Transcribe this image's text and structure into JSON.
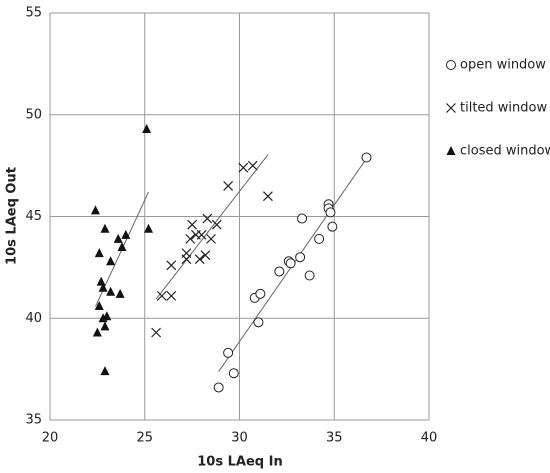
{
  "chart_data": {
    "type": "scatter",
    "x_label": "10s LAeq In",
    "y_label": "10s LAeq Out",
    "xlim": [
      20,
      40
    ],
    "xticks": [
      20,
      25,
      30,
      35,
      40
    ],
    "ylim": [
      35,
      55
    ],
    "yticks": [
      35,
      40,
      45,
      50,
      55
    ],
    "grid": true,
    "trendlines": true,
    "legend": "right",
    "series": [
      {
        "name": "open window",
        "marker": "circle",
        "color": "#222222",
        "x": [
          28.9,
          29.7,
          29.4,
          31.0,
          30.8,
          31.1,
          32.1,
          32.6,
          32.7,
          33.2,
          33.7,
          34.2,
          33.3,
          34.9,
          34.7,
          34.7,
          34.8,
          36.7
        ],
        "y": [
          36.6,
          37.3,
          38.3,
          39.8,
          41.0,
          41.2,
          42.3,
          42.8,
          42.7,
          43.0,
          42.1,
          43.9,
          44.9,
          44.5,
          45.6,
          45.4,
          45.2,
          47.9
        ]
      },
      {
        "name": "tilted window",
        "marker": "cross",
        "color": "#222222",
        "x": [
          25.6,
          25.9,
          26.4,
          26.4,
          27.2,
          27.2,
          27.4,
          27.5,
          27.7,
          27.9,
          28.0,
          28.2,
          28.3,
          28.5,
          28.8,
          29.4,
          30.2,
          30.7,
          31.5
        ],
        "y": [
          39.3,
          41.1,
          41.1,
          42.6,
          42.9,
          43.2,
          43.9,
          44.6,
          44.1,
          42.9,
          44.1,
          43.1,
          44.9,
          43.9,
          44.6,
          46.5,
          47.4,
          47.5,
          46.0
        ]
      },
      {
        "name": "closed window",
        "marker": "triangle",
        "color": "#111111",
        "x": [
          25.1,
          25.2,
          22.4,
          22.9,
          22.6,
          23.6,
          24.0,
          23.2,
          23.8,
          22.7,
          22.8,
          23.2,
          23.7,
          22.6,
          23.0,
          22.8,
          22.9,
          22.5,
          22.9
        ],
        "y": [
          49.3,
          44.4,
          45.3,
          44.4,
          43.2,
          43.9,
          44.1,
          42.8,
          43.5,
          41.8,
          41.5,
          41.3,
          41.2,
          40.6,
          40.1,
          40.0,
          39.6,
          39.3,
          37.4
        ]
      }
    ]
  }
}
